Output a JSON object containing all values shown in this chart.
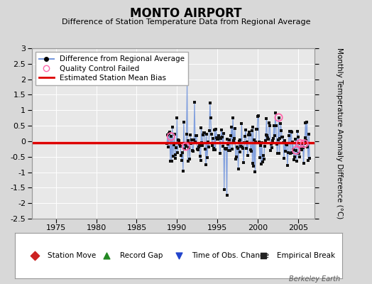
{
  "title": "MONTO AIRPORT",
  "subtitle": "Difference of Station Temperature Data from Regional Average",
  "ylabel": "Monthly Temperature Anomaly Difference (°C)",
  "xlim": [
    1972,
    2007
  ],
  "ylim": [
    -2.5,
    3.0
  ],
  "yticks": [
    -2.5,
    -2,
    -1.5,
    -1,
    -0.5,
    0,
    0.5,
    1,
    1.5,
    2,
    2.5,
    3
  ],
  "xticks": [
    1975,
    1980,
    1985,
    1990,
    1995,
    2000,
    2005
  ],
  "bias_value": -0.05,
  "background_color": "#d8d8d8",
  "plot_bg_color": "#e8e8e8",
  "grid_color": "#ffffff",
  "line_color": "#7799dd",
  "dot_color": "#111111",
  "bias_color": "#dd0000",
  "qc_color": "#ff66aa",
  "watermark": "Berkeley Earth",
  "start_year": 1988.75,
  "end_year": 2006.5,
  "legend_items_top": [
    "Difference from Regional Average",
    "Quality Control Failed",
    "Estimated Station Mean Bias"
  ],
  "legend_items_bottom": [
    "Station Move",
    "Record Gap",
    "Time of Obs. Change",
    "Empirical Break"
  ],
  "legend_colors_bottom": [
    "#cc2222",
    "#228822",
    "#2244cc",
    "#222222"
  ],
  "legend_markers_bottom": [
    "D",
    "^",
    "v",
    "s"
  ]
}
